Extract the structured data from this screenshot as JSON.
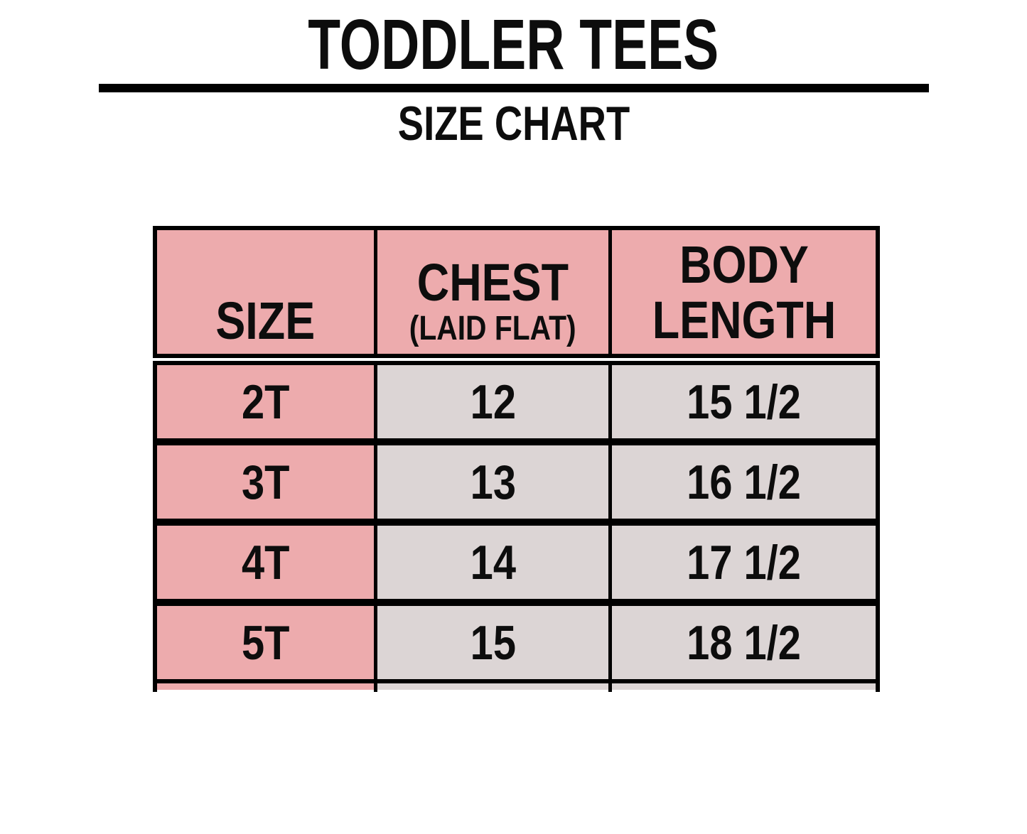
{
  "page": {
    "title": "TODDLER TEES",
    "subtitle": "SIZE CHART"
  },
  "table": {
    "header": {
      "size": "SIZE",
      "chest": "CHEST",
      "chest_sub": "(LAID FLAT)",
      "body_length": "BODY LENGTH"
    },
    "rows": [
      [
        "2T",
        "12",
        "15 1/2"
      ],
      [
        "3T",
        "13",
        "16 1/2"
      ],
      [
        "4T",
        "14",
        "17 1/2"
      ],
      [
        "5T",
        "15",
        "18 1/2"
      ]
    ]
  },
  "colors": {
    "header_pink": "#edabad",
    "cell_gray": "#dcd5d5",
    "border_black": "#000000",
    "text_black": "#0d0d0d",
    "background": "#ffffff"
  },
  "chart_data": {
    "type": "table",
    "title": "TODDLER TEES",
    "subtitle": "SIZE CHART",
    "columns": [
      "SIZE",
      "CHEST (LAID FLAT)",
      "BODY LENGTH"
    ],
    "rows": [
      {
        "size": "2T",
        "chest_laid_flat": "12",
        "body_length": "15 1/2"
      },
      {
        "size": "3T",
        "chest_laid_flat": "13",
        "body_length": "16 1/2"
      },
      {
        "size": "4T",
        "chest_laid_flat": "14",
        "body_length": "17 1/2"
      },
      {
        "size": "5T",
        "chest_laid_flat": "15",
        "body_length": "18 1/2"
      }
    ],
    "layout_hints": {
      "header_fill": "#edabad",
      "size_column_fill": "#edabad",
      "value_cells_fill": "#dcd5d5",
      "grid": "thick black borders",
      "bottom_row_cropped": true
    }
  }
}
